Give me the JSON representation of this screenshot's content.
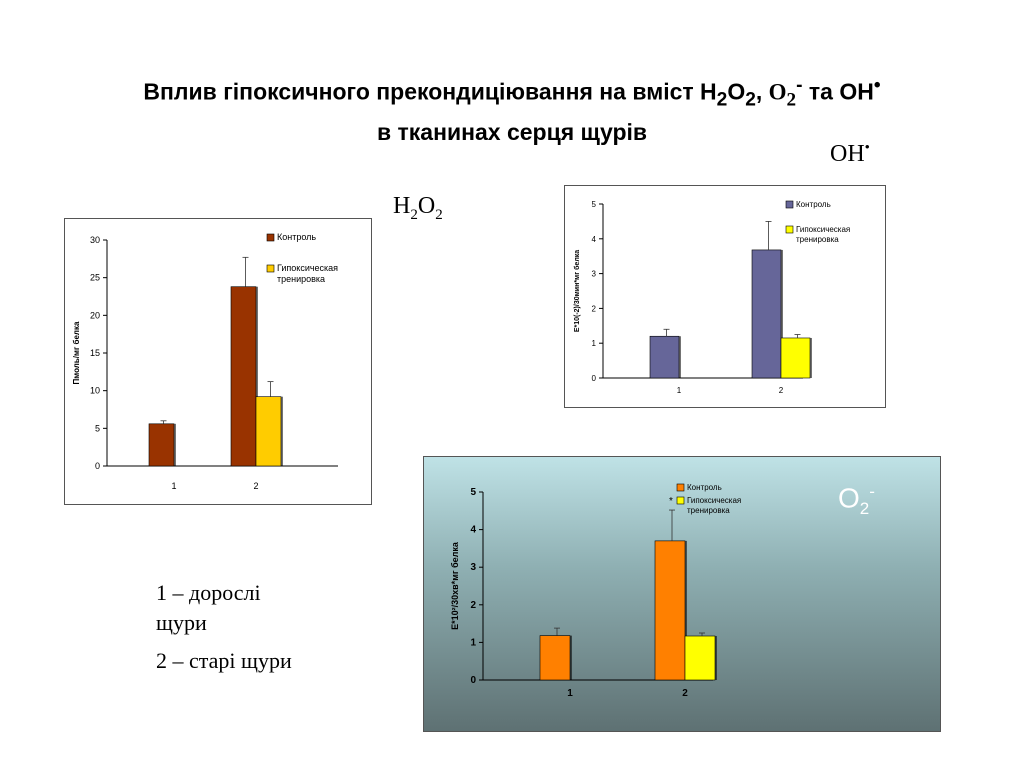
{
  "slide": {
    "title_line1_pre": "Вплив гіпоксичного прекондиціювання на вміст H",
    "title_sub1": "2",
    "title_o": "O",
    "title_sub2": "2",
    "title_comma1": ", ",
    "title_o2": "O",
    "title_sub3": "2",
    "title_sup3": "-",
    "title_mid": " та OH",
    "title_sup4": "•",
    "title_line2": "в тканинах серця щурів",
    "label_oh": "OH",
    "label_oh_sup": "•",
    "label_h2o2_h": "H",
    "label_h2o2_sub1": "2",
    "label_h2o2_o": "O",
    "label_h2o2_sub2": "2",
    "label_o2": "O",
    "label_o2_sub": "2",
    "label_o2_sup": "-",
    "note1": "1 – дорослі щури",
    "note2": "2 – старі щури"
  },
  "chart_data": [
    {
      "type": "bar",
      "id": "h2o2",
      "categories": [
        "1",
        "2"
      ],
      "series": [
        {
          "name": "Контроль",
          "values": [
            5.6,
            23.8
          ],
          "errors": [
            0.4,
            3.9
          ]
        },
        {
          "name": "Гипоксическая тренировка",
          "values": [
            null,
            9.2
          ],
          "errors": [
            null,
            2.0
          ]
        }
      ],
      "ylabel": "Пмоль/мг белка",
      "ylim": [
        0,
        30
      ],
      "yticks": [
        0,
        5,
        10,
        15,
        20,
        25,
        30
      ],
      "colors": [
        "#993300",
        "#ffcc00"
      ],
      "legend": "top-right"
    },
    {
      "type": "bar",
      "id": "oh",
      "categories": [
        "1",
        "2"
      ],
      "series": [
        {
          "name": "Контроль",
          "values": [
            1.2,
            3.68
          ],
          "errors": [
            0.2,
            0.82
          ]
        },
        {
          "name": "Гипоксическая тренировка",
          "values": [
            null,
            1.15
          ],
          "errors": [
            null,
            0.1
          ]
        }
      ],
      "ylabel": "E*10(-2)/30мин*мг белка",
      "ylim": [
        0,
        5
      ],
      "yticks": [
        0,
        1,
        2,
        3,
        4,
        5
      ],
      "colors": [
        "#666699",
        "#ffff00"
      ],
      "legend": "top-right"
    },
    {
      "type": "bar",
      "id": "o2",
      "categories": [
        "1",
        "2"
      ],
      "series": [
        {
          "name": "Контроль",
          "values": [
            1.18,
            3.7
          ],
          "errors": [
            0.2,
            0.82
          ]
        },
        {
          "name": "Гипоксическая тренировка",
          "values": [
            null,
            1.17
          ],
          "errors": [
            null,
            0.08
          ]
        }
      ],
      "ylabel": "E*10²/30хв*мг белка",
      "ylim": [
        0,
        5
      ],
      "yticks": [
        0,
        1,
        2,
        3,
        4,
        5
      ],
      "annotations": [
        "*"
      ],
      "colors": [
        "#ff8000",
        "#ffff00"
      ],
      "legend": "top-right"
    }
  ]
}
